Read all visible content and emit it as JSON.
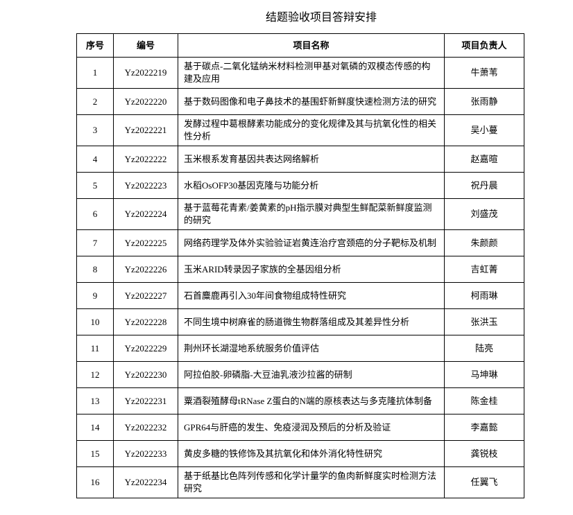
{
  "page": {
    "title": "结题验收项目答辩安排"
  },
  "colors": {
    "page_background": "#ffffff",
    "text": "#000000",
    "table_border": "#000000"
  },
  "table": {
    "headers": {
      "no": "序号",
      "code": "编号",
      "name": "项目名称",
      "leader": "项目负责人"
    },
    "rows": [
      {
        "no": "1",
        "code": "Yz2022219",
        "name": "基于碳点-二氧化锰纳米材料检测甲基对氧磷的双模态传感的构建及应用",
        "leader": "牛萧苇"
      },
      {
        "no": "2",
        "code": "Yz2022220",
        "name": "基于数码图像和电子鼻技术的基围虾新鲜度快速检测方法的研究",
        "leader": "张雨静"
      },
      {
        "no": "3",
        "code": "Yz2022221",
        "name": "发酵过程中葛根酵素功能成分的变化规律及其与抗氧化性的相关性分析",
        "leader": "吴小蔓"
      },
      {
        "no": "4",
        "code": "Yz2022222",
        "name": "玉米根系发育基因共表达网络解析",
        "leader": "赵嘉暄"
      },
      {
        "no": "5",
        "code": "Yz2022223",
        "name": "水稻OsOFP30基因克隆与功能分析",
        "leader": "祝丹晨"
      },
      {
        "no": "6",
        "code": "Yz2022224",
        "name": "基于蓝莓花青素/姜黄素的pH指示膜对典型生鲜配菜新鲜度监测的研究",
        "leader": "刘盛茂"
      },
      {
        "no": "7",
        "code": "Yz2022225",
        "name": "网络药理学及体外实验验证岩黄连治疗宫颈癌的分子靶标及机制",
        "leader": "朱颜颜"
      },
      {
        "no": "8",
        "code": "Yz2022226",
        "name": "玉米ARID转录因子家族的全基因组分析",
        "leader": "吉虹菁"
      },
      {
        "no": "9",
        "code": "Yz2022227",
        "name": "石首麋鹿再引入30年间食物组成特性研究",
        "leader": "柯雨琳"
      },
      {
        "no": "10",
        "code": "Yz2022228",
        "name": "不同生境中树麻雀的肠道微生物群落组成及其差异性分析",
        "leader": "张洪玉"
      },
      {
        "no": "11",
        "code": "Yz2022229",
        "name": "荆州环长湖湿地系统服务价值评估",
        "leader": "陆亮"
      },
      {
        "no": "12",
        "code": "Yz2022230",
        "name": "阿拉伯胶-卵磷脂-大豆油乳液沙拉酱的研制",
        "leader": "马坤琳"
      },
      {
        "no": "13",
        "code": "Yz2022231",
        "name": "粟酒裂殖酵母tRNase Z蛋白的N端的原核表达与多克隆抗体制备",
        "leader": "陈金桂"
      },
      {
        "no": "14",
        "code": "Yz2022232",
        "name": "GPR64与肝癌的发生、免疫浸润及预后的分析及验证",
        "leader": "李嘉懿"
      },
      {
        "no": "15",
        "code": "Yz2022233",
        "name": "黄皮多糖的铁修饰及其抗氧化和体外消化特性研究",
        "leader": "龚锐枝"
      },
      {
        "no": "16",
        "code": "Yz2022234",
        "name": "基于纸基比色阵列传感和化学计量学的鱼肉新鲜度实时检测方法研究",
        "leader": "任翼飞"
      }
    ]
  }
}
